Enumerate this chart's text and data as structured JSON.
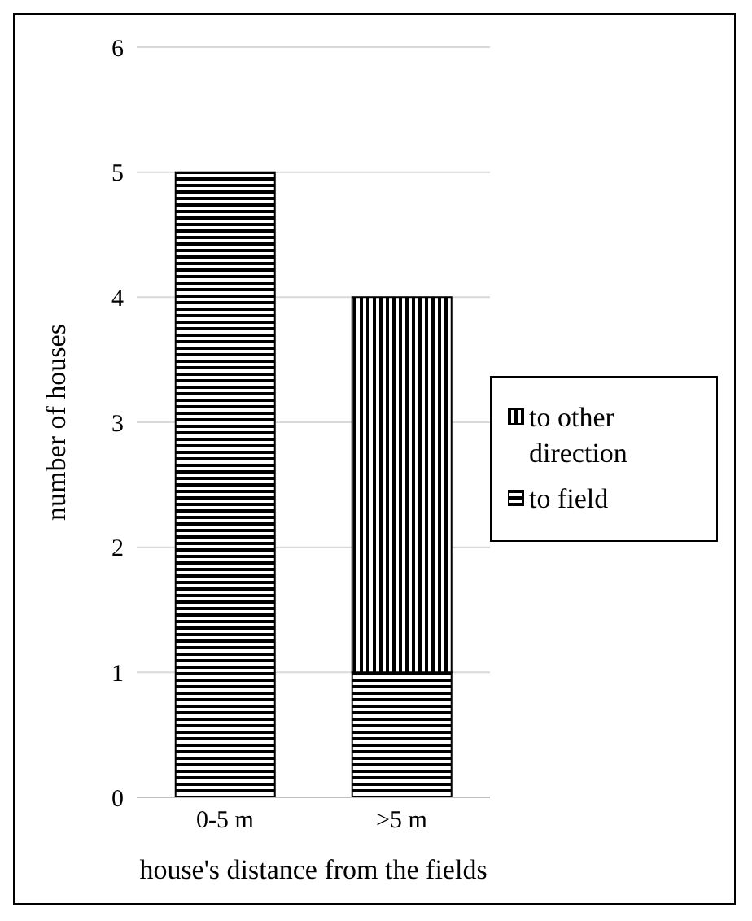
{
  "chart_data": {
    "type": "bar",
    "stacked": true,
    "xlabel": "house's distance from the fields",
    "ylabel": "number of houses",
    "categories": [
      "0-5 m",
      ">5 m"
    ],
    "series": [
      {
        "name": "to field",
        "color": "#000000",
        "values": [
          5,
          1
        ]
      },
      {
        "name": "to other direction",
        "color": "#000000",
        "values": [
          0,
          3
        ]
      }
    ],
    "ylim": [
      0,
      6
    ],
    "yticks": [
      0,
      1,
      2,
      3,
      4,
      5,
      6
    ],
    "grid": "y",
    "legend": "right"
  }
}
